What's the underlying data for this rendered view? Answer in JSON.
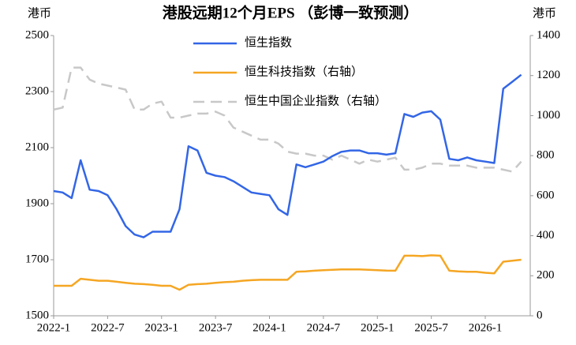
{
  "chart_data": {
    "type": "line",
    "title": "港股远期12个月EPS （彭博一致预测）",
    "y_label": "港币",
    "y2_label": "港币",
    "x": [
      "2022-1",
      "2022-2",
      "2022-3",
      "2022-4",
      "2022-5",
      "2022-6",
      "2022-7",
      "2022-8",
      "2022-9",
      "2022-10",
      "2022-11",
      "2022-12",
      "2023-1",
      "2023-2",
      "2023-3",
      "2023-4",
      "2023-5",
      "2023-6",
      "2023-7",
      "2023-8",
      "2023-9",
      "2023-10",
      "2023-11",
      "2023-12",
      "2024-1",
      "2024-2",
      "2024-3",
      "2024-4",
      "2024-5",
      "2024-6",
      "2024-7",
      "2024-8",
      "2024-9",
      "2024-10",
      "2024-11",
      "2024-12",
      "2025-1",
      "2025-2",
      "2025-3",
      "2025-4",
      "2025-5",
      "2025-6",
      "2025-7",
      "2025-8",
      "2025-9",
      "2025-10",
      "2025-11",
      "2025-12",
      "2026-1",
      "2026-2",
      "2026-3",
      "2026-4",
      "2026-5"
    ],
    "xlim": [
      "2022-1",
      "2026-6"
    ],
    "xticks": [
      "2022-1",
      "2022-7",
      "2023-1",
      "2023-7",
      "2024-1",
      "2024-7",
      "2025-1",
      "2025-7",
      "2026-1"
    ],
    "ylim": [
      1500,
      2500
    ],
    "yticks": [
      1500,
      1700,
      1900,
      2100,
      2300,
      2500
    ],
    "y2lim": [
      0,
      1400
    ],
    "y2ticks": [
      0,
      200,
      400,
      600,
      800,
      1000,
      1200,
      1400
    ],
    "series": [
      {
        "name": "恒生指数",
        "color": "#3366e6",
        "linestyle": "solid",
        "axis": "y",
        "values": [
          1945,
          1940,
          1920,
          2055,
          1950,
          1945,
          1930,
          1880,
          1820,
          1790,
          1780,
          1800,
          1800,
          1800,
          1880,
          2105,
          2090,
          2010,
          2000,
          1995,
          1980,
          1960,
          1940,
          1935,
          1930,
          1880,
          1860,
          2040,
          2030,
          2040,
          2050,
          2070,
          2085,
          2090,
          2090,
          2080,
          2080,
          2075,
          2080,
          2220,
          2210,
          2225,
          2230,
          2200,
          2060,
          2055,
          2065,
          2055,
          2050,
          2045,
          2310,
          2335,
          2360
        ]
      },
      {
        "name": "恒生科技指数（右轴）",
        "color": "#f5a623",
        "linestyle": "solid",
        "axis": "y2",
        "values": [
          150,
          150,
          150,
          185,
          180,
          175,
          175,
          170,
          165,
          160,
          158,
          155,
          150,
          150,
          130,
          155,
          158,
          160,
          165,
          168,
          170,
          175,
          178,
          180,
          180,
          180,
          180,
          220,
          222,
          225,
          228,
          230,
          232,
          232,
          232,
          230,
          228,
          226,
          225,
          300,
          300,
          298,
          302,
          300,
          225,
          222,
          220,
          220,
          215,
          212,
          270,
          275,
          280
        ]
      },
      {
        "name": "恒生中国企业指数（右轴）",
        "color": "#c8c8c8",
        "linestyle": "dashed",
        "axis": "y2",
        "values": [
          1030,
          1040,
          1240,
          1240,
          1180,
          1160,
          1150,
          1140,
          1130,
          1030,
          1030,
          1060,
          1070,
          990,
          990,
          1000,
          1010,
          1010,
          1020,
          1000,
          940,
          920,
          900,
          880,
          880,
          860,
          820,
          810,
          810,
          800,
          800,
          780,
          800,
          780,
          760,
          780,
          770,
          780,
          790,
          730,
          730,
          740,
          760,
          760,
          750,
          750,
          750,
          740,
          740,
          740,
          730,
          720,
          770
        ]
      }
    ]
  }
}
